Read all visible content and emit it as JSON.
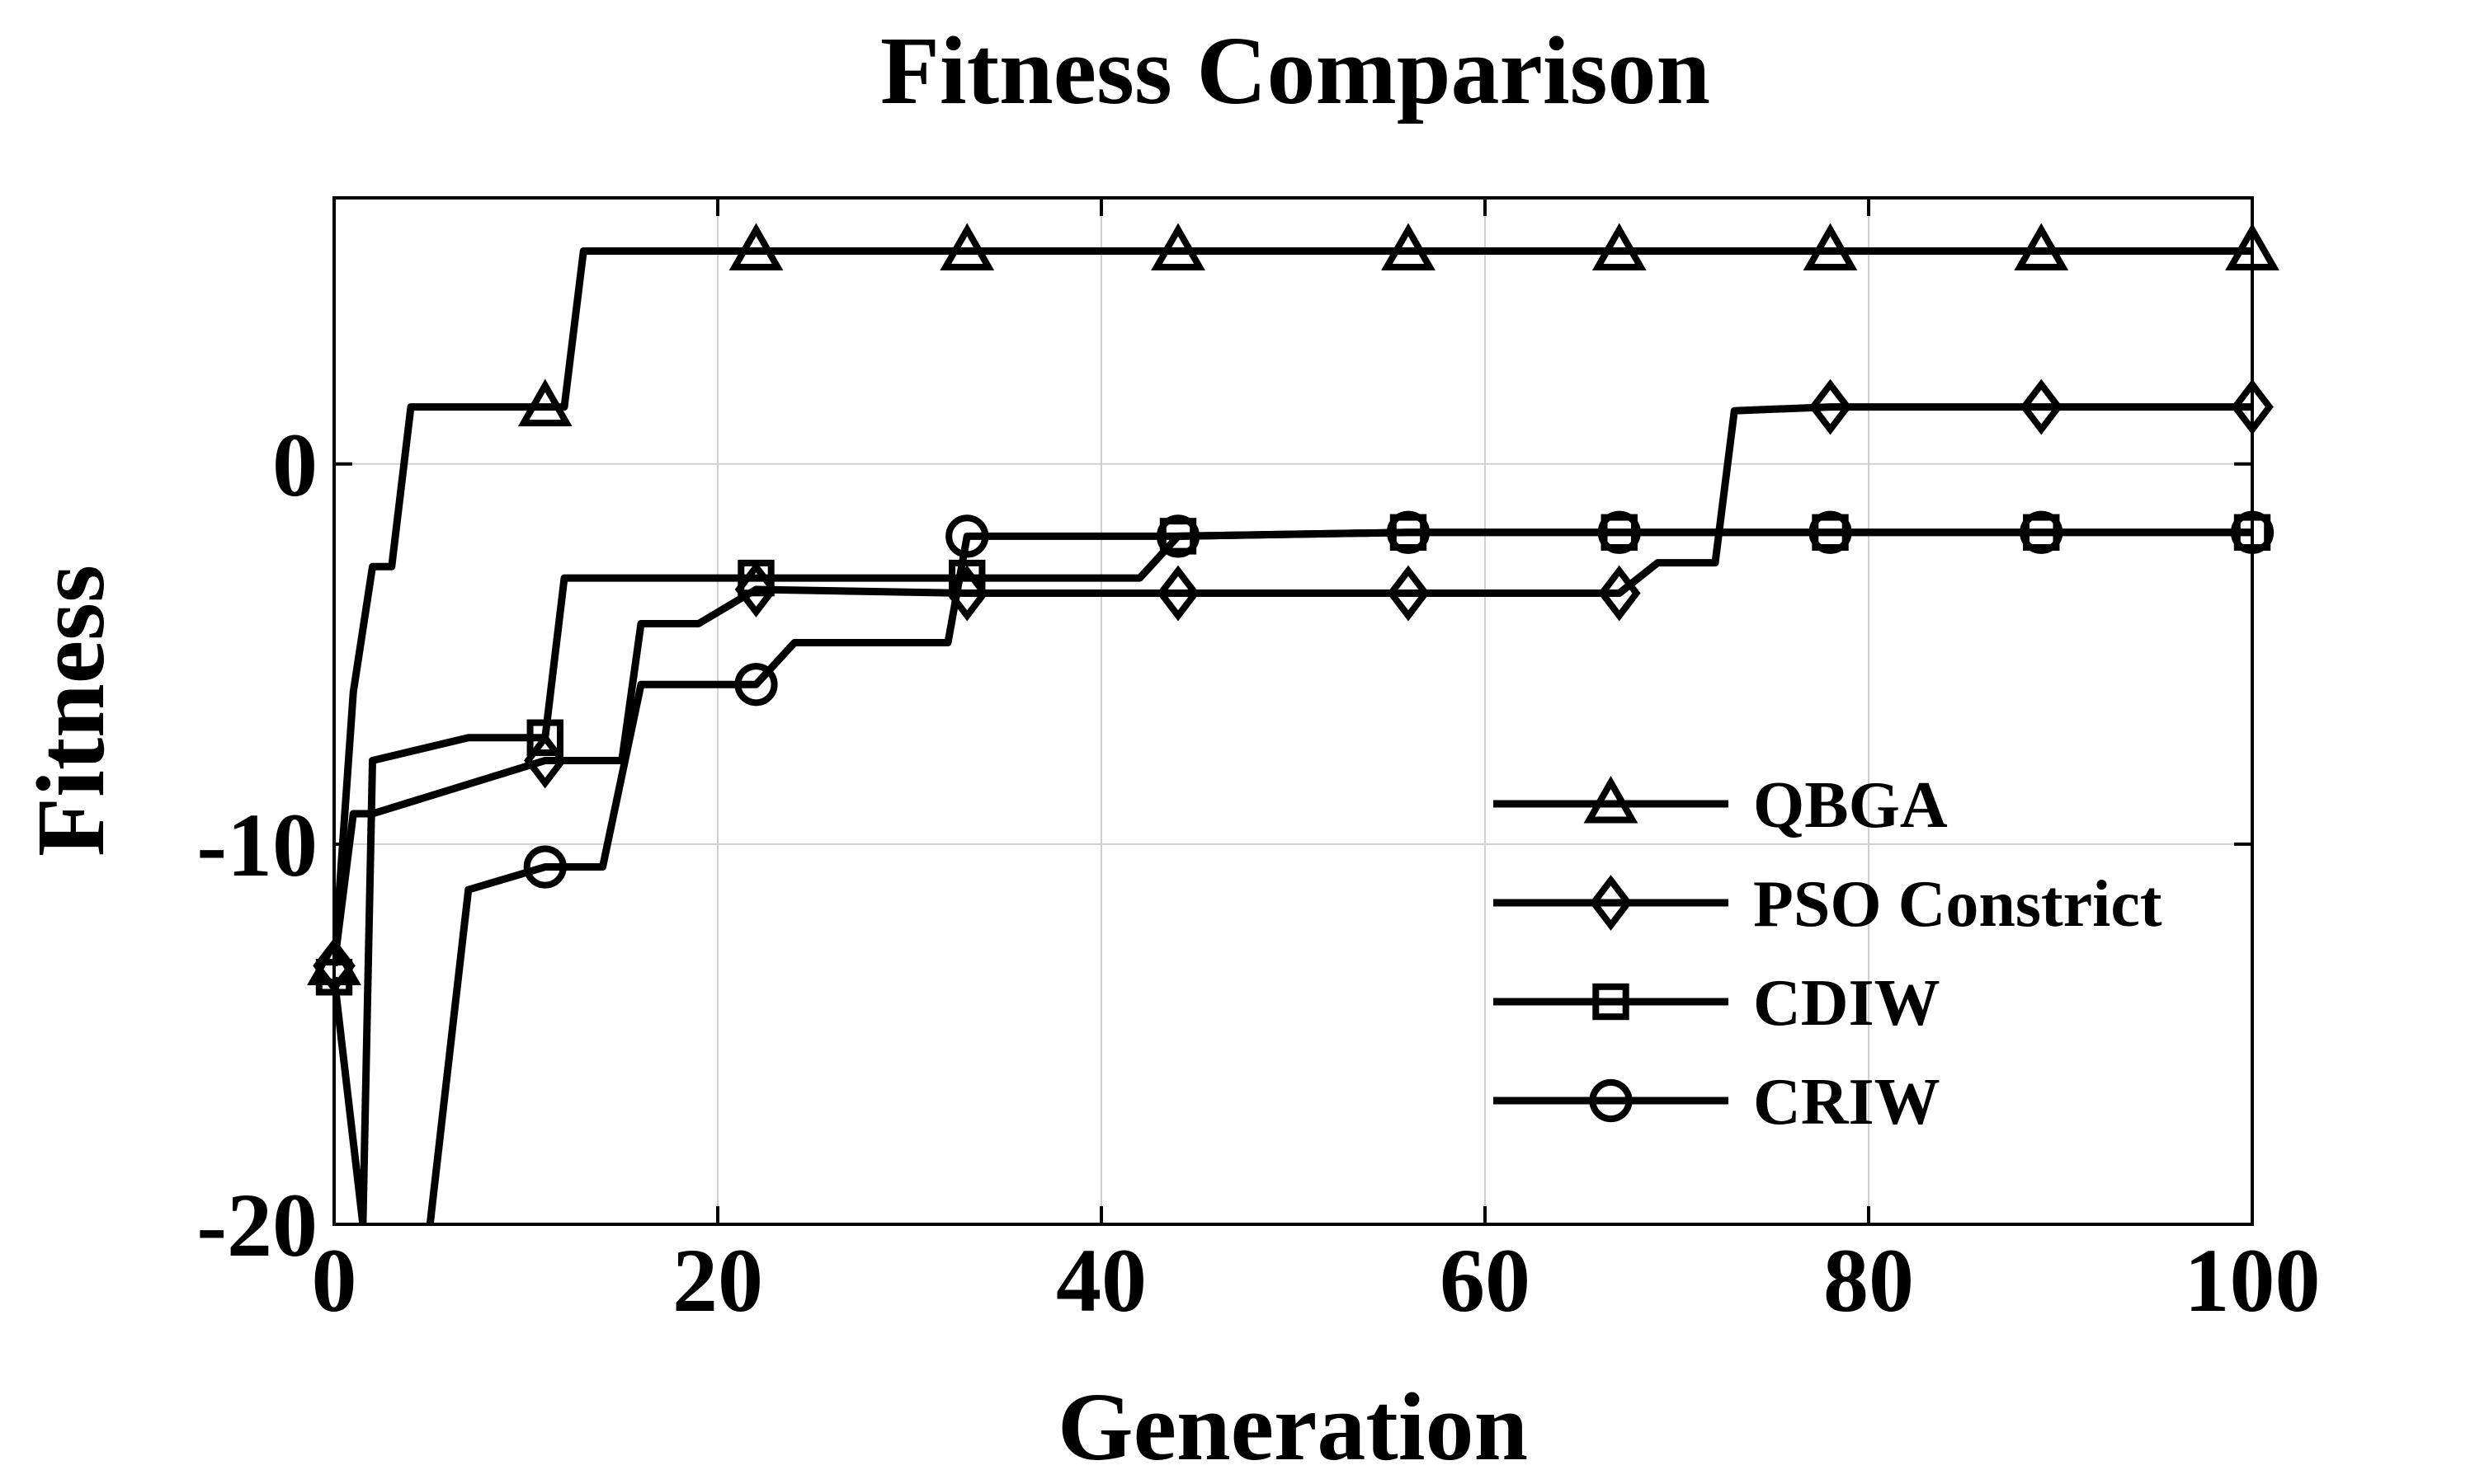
{
  "chart_data": {
    "type": "line",
    "title": "Fitness Comparison",
    "xlabel": "Generation",
    "ylabel": "Fitness",
    "xlim": [
      0,
      100
    ],
    "ylim": [
      -20,
      7
    ],
    "xticks": [
      0,
      20,
      40,
      60,
      80,
      100
    ],
    "yticks": [
      -20,
      -10,
      0
    ],
    "xtick_labels": [
      "0",
      "20",
      "40",
      "60",
      "80",
      "100"
    ],
    "ytick_labels": [
      "-20",
      "-10",
      "0"
    ],
    "grid": true,
    "legend_position": "lower-right",
    "series": [
      {
        "name": "QBGA",
        "marker": "triangle",
        "x": [
          0,
          1,
          2,
          3,
          4,
          5,
          11,
          12,
          13,
          22,
          33,
          44,
          56,
          67,
          78,
          89,
          100
        ],
        "y": [
          -13.2,
          -6,
          -2.7,
          -2.7,
          1.5,
          1.5,
          1.5,
          1.5,
          5.6,
          5.6,
          5.6,
          5.6,
          5.6,
          5.6,
          5.6,
          5.6,
          5.6
        ],
        "marker_x": [
          0,
          11,
          22,
          33,
          44,
          56,
          67,
          78,
          89,
          100
        ]
      },
      {
        "name": "PSO Constrict",
        "marker": "diamond",
        "x": [
          0,
          1,
          2,
          11,
          15,
          16,
          19,
          22,
          33,
          44,
          56,
          67,
          69,
          71,
          72,
          73,
          78,
          89,
          100
        ],
        "y": [
          -13.2,
          -9.2,
          -9.2,
          -7.8,
          -7.8,
          -4.2,
          -4.2,
          -3.3,
          -3.4,
          -3.4,
          -3.4,
          -3.4,
          -2.6,
          -2.6,
          -2.6,
          1.4,
          1.5,
          1.5,
          1.5
        ],
        "marker_x": [
          0,
          11,
          22,
          33,
          44,
          56,
          67,
          78,
          89,
          100
        ]
      },
      {
        "name": "CDIW",
        "marker": "square",
        "x": [
          0,
          1.5,
          2,
          7,
          11,
          12,
          22,
          33,
          42,
          44,
          56,
          67,
          78,
          89,
          100
        ],
        "y": [
          -13.5,
          -20,
          -7.8,
          -7.2,
          -7.2,
          -3,
          -3,
          -3,
          -3,
          -1.9,
          -1.8,
          -1.8,
          -1.8,
          -1.8,
          -1.8
        ],
        "marker_x": [
          0,
          11,
          22,
          33,
          44,
          56,
          67,
          78,
          89,
          100
        ]
      },
      {
        "name": "CRIW",
        "marker": "circle",
        "x": [
          5,
          7,
          11,
          14,
          16,
          22,
          24,
          32,
          33,
          44,
          56,
          67,
          78,
          89,
          100
        ],
        "y": [
          -20,
          -11.2,
          -10.6,
          -10.6,
          -5.8,
          -5.8,
          -4.7,
          -4.7,
          -1.9,
          -1.9,
          -1.8,
          -1.8,
          -1.8,
          -1.8,
          -1.8
        ],
        "marker_x": [
          11,
          22,
          33,
          44,
          56,
          67,
          78,
          89,
          100
        ]
      }
    ]
  }
}
